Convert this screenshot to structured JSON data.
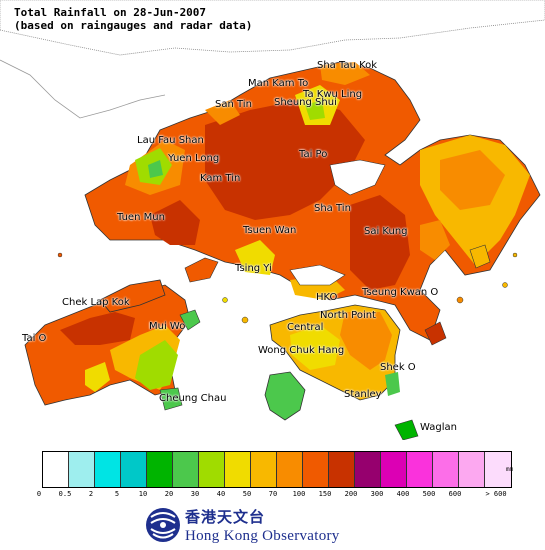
{
  "header": {
    "title_line1": "Total Rainfall on 28-Jun-2007",
    "title_line2": "(based on raingauges and radar data)"
  },
  "places": [
    {
      "name": "Sha Tau Kok"
    },
    {
      "name": "Man Kam To"
    },
    {
      "name": "Ta Kwu Ling"
    },
    {
      "name": "San Tin"
    },
    {
      "name": "Sheung Shui"
    },
    {
      "name": "Lau Fau Shan"
    },
    {
      "name": "Yuen Long"
    },
    {
      "name": "Tai Po"
    },
    {
      "name": "Kam Tin"
    },
    {
      "name": "Tuen Mun"
    },
    {
      "name": "Sha Tin"
    },
    {
      "name": "Tsuen Wan"
    },
    {
      "name": "Sai Kung"
    },
    {
      "name": "Tsing Yi"
    },
    {
      "name": "Chek Lap Kok"
    },
    {
      "name": "HKO"
    },
    {
      "name": "Tseung Kwan O"
    },
    {
      "name": "North Point"
    },
    {
      "name": "Tai O"
    },
    {
      "name": "Mui Wo"
    },
    {
      "name": "Central"
    },
    {
      "name": "Wong Chuk Hang"
    },
    {
      "name": "Shek O"
    },
    {
      "name": "Stanley"
    },
    {
      "name": "Cheung Chau"
    },
    {
      "name": "Waglan"
    }
  ],
  "legend": {
    "unit": "mm",
    "colors": [
      "#ffffff",
      "#9eeeee",
      "#00e4e4",
      "#00c8c8",
      "#00b400",
      "#4cc84c",
      "#a0dc00",
      "#f0dc00",
      "#f8b800",
      "#f88c00",
      "#f05a00",
      "#c83200",
      "#96006e",
      "#dc00b4",
      "#fa32dc",
      "#fc6ee8",
      "#fca8f0",
      "#fcdcfc"
    ],
    "ticks": [
      "0",
      "0.5",
      "2",
      "5",
      "10",
      "20",
      "30",
      "40",
      "50",
      "70",
      "100",
      "150",
      "200",
      "300",
      "400",
      "500",
      "600",
      "> 600"
    ]
  },
  "logo": {
    "chinese": "香港天文台",
    "english": "Hong Kong Observatory"
  }
}
